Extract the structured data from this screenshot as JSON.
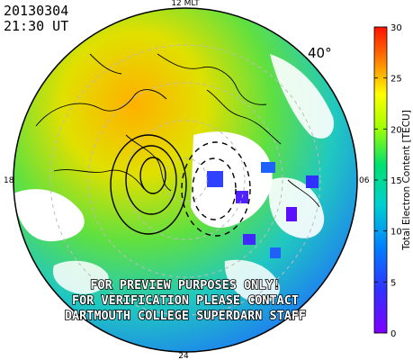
{
  "header": {
    "date": "20130304",
    "time": "21:30 UT"
  },
  "map": {
    "mlt_top": "12 MLT",
    "mlt_bottom": "24",
    "mlt_left": "18",
    "mlt_right": "06",
    "latitude_label": "40°"
  },
  "colorbar": {
    "label": "Total Electron Content [TECU]",
    "min": 0,
    "max": 30,
    "ticks": [
      "0",
      "5",
      "10",
      "15",
      "20",
      "25",
      "30"
    ]
  },
  "watermark": {
    "line1": "FOR PREVIEW PURPOSES ONLY!",
    "line2": "FOR VERIFICATION PLEASE CONTACT",
    "line3": "DARTMOUTH COLLEGE SUPERDARN STAFF"
  },
  "colors": {
    "background": "#ffffff",
    "outline": "#000000",
    "gridline": "#bbbbbb"
  }
}
